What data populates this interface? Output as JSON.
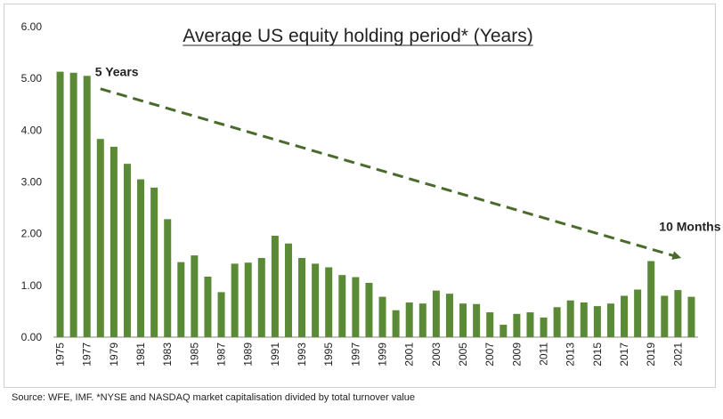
{
  "source_note": "Source: WFE, IMF. *NYSE and NASDAQ market capitalisation divided by total turnover value",
  "colors": {
    "bar": "#5b8a36",
    "arrow": "#4a6b2c",
    "axis": "#888888"
  },
  "chart_data": {
    "type": "bar",
    "title": "Average US equity holding period* (Years)",
    "xlabel": "",
    "ylabel": "",
    "ylim": [
      0,
      6
    ],
    "yticks": [
      "0.00",
      "1.00",
      "2.00",
      "3.00",
      "4.00",
      "5.00",
      "6.00"
    ],
    "grid": false,
    "legend": "none",
    "categories": [
      "1975",
      "1976",
      "1977",
      "1978",
      "1979",
      "1980",
      "1981",
      "1982",
      "1983",
      "1984",
      "1985",
      "1986",
      "1987",
      "1988",
      "1989",
      "1990",
      "1991",
      "1992",
      "1993",
      "1994",
      "1995",
      "1996",
      "1997",
      "1998",
      "1999",
      "2000",
      "2001",
      "2002",
      "2003",
      "2004",
      "2005",
      "2006",
      "2007",
      "2008",
      "2009",
      "2010",
      "2011",
      "2012",
      "2013",
      "2014",
      "2015",
      "2016",
      "2017",
      "2018",
      "2019",
      "2020",
      "2021",
      "2022"
    ],
    "xtick_labels": [
      "1975",
      "1977",
      "1979",
      "1981",
      "1983",
      "1985",
      "1987",
      "1989",
      "1991",
      "1993",
      "1995",
      "1997",
      "1999",
      "2001",
      "2003",
      "2005",
      "2007",
      "2009",
      "2011",
      "2013",
      "2015",
      "2017",
      "2019",
      "2021"
    ],
    "values": [
      5.13,
      5.11,
      5.05,
      3.83,
      3.68,
      3.35,
      3.05,
      2.89,
      2.28,
      1.45,
      1.58,
      1.17,
      0.87,
      1.42,
      1.44,
      1.53,
      1.96,
      1.81,
      1.53,
      1.42,
      1.35,
      1.2,
      1.16,
      1.05,
      0.78,
      0.52,
      0.67,
      0.65,
      0.9,
      0.84,
      0.65,
      0.64,
      0.48,
      0.24,
      0.45,
      0.48,
      0.38,
      0.58,
      0.71,
      0.67,
      0.6,
      0.65,
      0.8,
      0.92,
      1.47,
      0.8,
      0.91,
      0.78
    ],
    "annotations": [
      {
        "text": "5 Years",
        "x": "1978",
        "y": 5.13
      },
      {
        "text": "10 Months",
        "x": "2020",
        "y": 2.14
      }
    ],
    "trend_arrow": {
      "from": {
        "x": "1978",
        "y": 4.8
      },
      "to": {
        "x": "2021",
        "y": 1.55
      }
    }
  }
}
